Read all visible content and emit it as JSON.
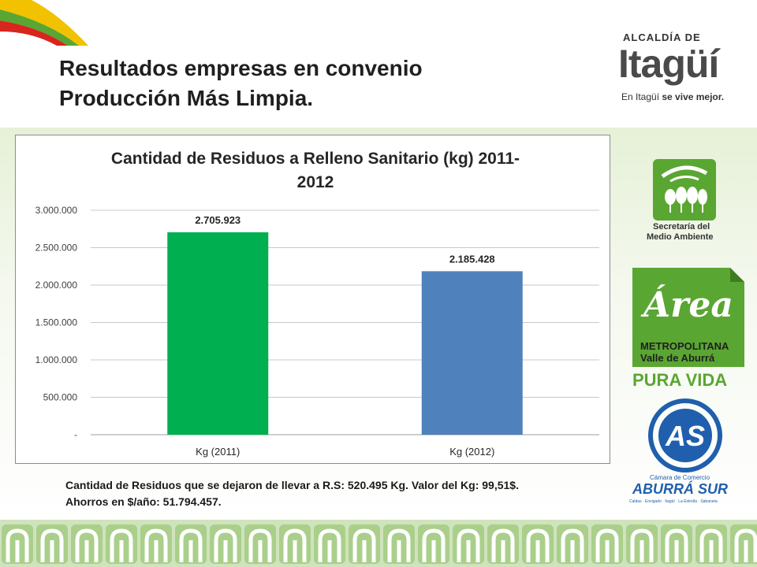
{
  "slide": {
    "title_line1": "Resultados empresas en convenio",
    "title_line2": "Producción Más Limpia.",
    "caption_line1": "Cantidad de Residuos que se dejaron de llevar a R.S: 520.495 Kg. Valor del Kg: 99,51$.",
    "caption_line2": "Ahorros en $/año: 51.794.457."
  },
  "logos": {
    "itagui": {
      "top": "ALCALDÍA DE",
      "name": "Itagüí",
      "tagline_normal": "En Itagüí ",
      "tagline_bold": "se vive mejor."
    },
    "secretaria": {
      "line1": "Secretaría del",
      "line2": "Medio Ambiente"
    },
    "area": {
      "script": "Área",
      "line1": "METROPOLITANA",
      "line2": "Valle de Aburrá",
      "line3": "PURA VIDA"
    },
    "camara": {
      "letters": "AS",
      "line1": "Cámara de Comercio",
      "line2": "ABURRÁ SUR",
      "line3": "Caldas · Envigado · Itagüí · La Estrella · Sabaneta"
    }
  },
  "colors": {
    "bar_2011": "#00b050",
    "bar_2012": "#4f81bd",
    "brand_green": "#5aa632",
    "brand_yellow": "#f2c200",
    "brand_red": "#d7261e"
  },
  "chart_data": {
    "type": "bar",
    "title": "Cantidad de Residuos a Relleno Sanitario (kg) 2011-2012",
    "categories": [
      "Kg (2011)",
      "Kg (2012)"
    ],
    "values": [
      2705923,
      2185428
    ],
    "value_labels": [
      "2.705.923",
      "2.185.428"
    ],
    "ylim": [
      0,
      3000000
    ],
    "yticks": [
      0,
      500000,
      1000000,
      1500000,
      2000000,
      2500000,
      3000000
    ],
    "ytick_labels": [
      "-",
      "500.000",
      "1.000.000",
      "1.500.000",
      "2.000.000",
      "2.500.000",
      "3.000.000"
    ],
    "grid": true,
    "legend": "none"
  }
}
